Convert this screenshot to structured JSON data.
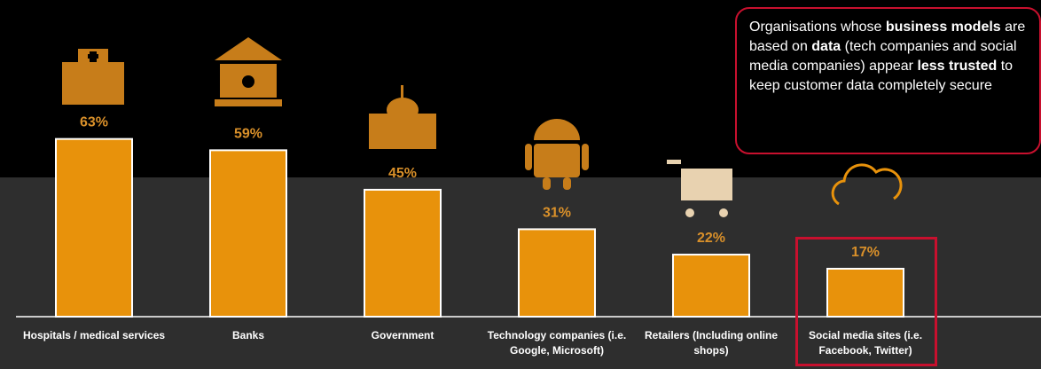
{
  "chart_data": {
    "type": "bar",
    "categories": [
      "Hospitals / medical services",
      "Banks",
      "Government",
      "Technology companies (i.e. Google, Microsoft)",
      "Retailers (Including online shops)",
      "Social media sites (i.e. Facebook, Twitter)"
    ],
    "values": [
      63,
      59,
      45,
      31,
      22,
      17
    ],
    "value_labels": [
      "63%",
      "59%",
      "45%",
      "31%",
      "22%",
      "17%"
    ],
    "color": "#e8920b",
    "annotation": [
      "Organisations whose ",
      "business models",
      " are based on ",
      "data",
      " (tech companies and social media companies) appear ",
      "less trusted",
      " to keep customer data completely secure"
    ]
  }
}
